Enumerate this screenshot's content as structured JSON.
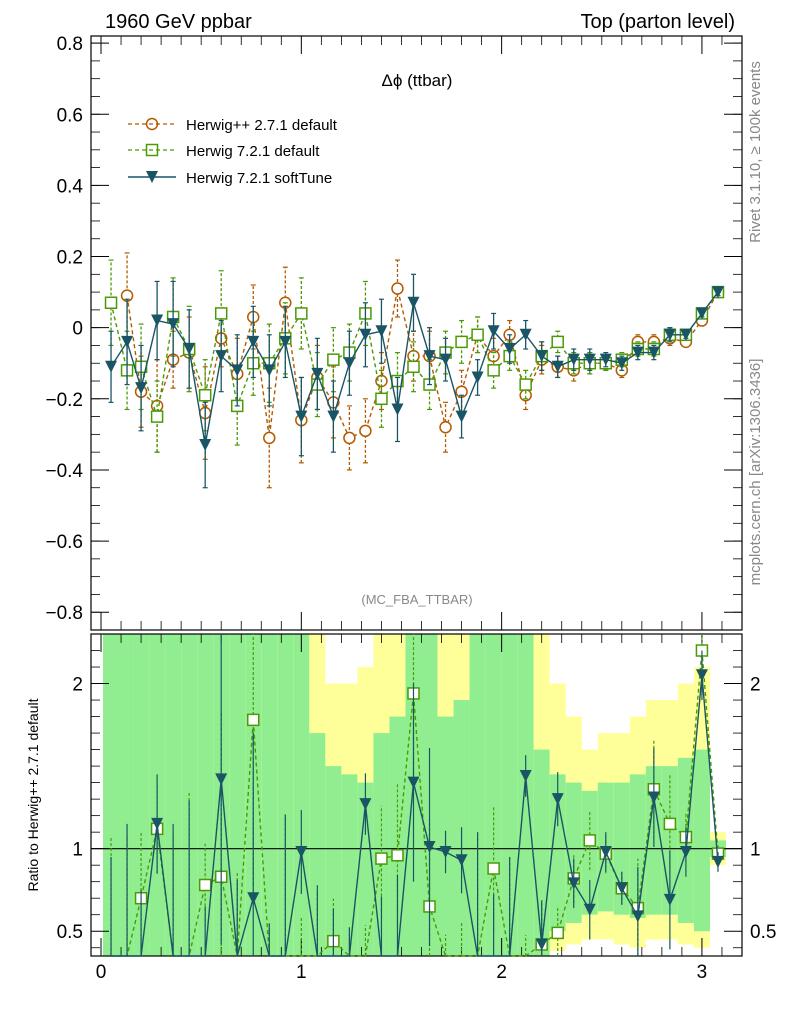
{
  "header": {
    "left": "1960 GeV ppbar",
    "right": "Top (parton level)"
  },
  "side": {
    "rivet": "Rivet 3.1.10, ≥ 100k events",
    "mcplots": "mcplots.cern.ch [arXiv:1306.3436]"
  },
  "main": {
    "title": "Δϕ (ttbar)",
    "analysis": "(MC_FBA_TTBAR)"
  },
  "ratio": {
    "ylabel": "Ratio to Herwig++ 2.7.1 default"
  },
  "legend": {
    "items": [
      {
        "label": "Herwig++ 2.7.1 default",
        "color": "#b35a00",
        "marker": "circle",
        "dash": true
      },
      {
        "label": "Herwig 7.2.1 default",
        "color": "#4a9a06",
        "marker": "square",
        "dash": true
      },
      {
        "label": "Herwig 7.2.1 softTune",
        "color": "#1a5566",
        "marker": "triangle-down",
        "dash": false
      }
    ]
  },
  "chart_data": [
    {
      "type": "line",
      "xlim": [
        -0.05,
        3.2
      ],
      "ylim": [
        -0.85,
        0.82
      ],
      "x_ticks": [
        0,
        1,
        2,
        3
      ],
      "y_ticks": [
        -0.8,
        -0.6,
        -0.4,
        -0.2,
        0,
        0.2,
        0.4,
        0.6,
        0.8
      ],
      "x": [
        0.05,
        0.13,
        0.2,
        0.28,
        0.36,
        0.44,
        0.52,
        0.6,
        0.68,
        0.76,
        0.84,
        0.92,
        1.0,
        1.08,
        1.16,
        1.24,
        1.32,
        1.4,
        1.48,
        1.56,
        1.64,
        1.72,
        1.8,
        1.88,
        1.96,
        2.04,
        2.12,
        2.2,
        2.28,
        2.36,
        2.44,
        2.52,
        2.6,
        2.68,
        2.76,
        2.84,
        2.92,
        3.0,
        3.08
      ],
      "series": [
        {
          "name": "Herwig++ 2.7.1 default",
          "color": "#b35a00",
          "y": [
            null,
            0.09,
            -0.18,
            -0.22,
            -0.09,
            -0.07,
            -0.24,
            -0.03,
            -0.13,
            0.03,
            -0.31,
            0.07,
            -0.26,
            -0.14,
            -0.21,
            -0.31,
            -0.29,
            -0.15,
            0.11,
            -0.08,
            -0.08,
            -0.28,
            -0.18,
            -0.02,
            -0.08,
            -0.02,
            -0.19,
            -0.09,
            -0.11,
            -0.12,
            -0.1,
            -0.1,
            -0.12,
            -0.04,
            -0.04,
            -0.03,
            -0.04,
            0.02,
            0.1
          ],
          "err": [
            null,
            0.12,
            0.1,
            0.13,
            0.08,
            0.1,
            0.13,
            0.08,
            0.1,
            0.09,
            0.14,
            0.1,
            0.12,
            0.09,
            0.1,
            0.09,
            0.09,
            0.08,
            0.08,
            0.07,
            0.07,
            0.07,
            0.06,
            0.05,
            0.05,
            0.04,
            0.04,
            0.04,
            0.03,
            0.03,
            0.03,
            0.02,
            0.02,
            0.02,
            0.02,
            0.02,
            0.01,
            0.01,
            0.01
          ]
        },
        {
          "name": "Herwig 7.2.1 default",
          "color": "#4a9a06",
          "y": [
            0.07,
            -0.12,
            -0.11,
            -0.25,
            0.03,
            -0.06,
            -0.19,
            0.04,
            -0.22,
            -0.1,
            -0.1,
            -0.03,
            0.04,
            -0.16,
            -0.09,
            -0.07,
            0.04,
            -0.2,
            -0.15,
            -0.11,
            -0.16,
            -0.07,
            -0.04,
            -0.02,
            -0.12,
            -0.08,
            -0.16,
            -0.08,
            -0.04,
            -0.1,
            -0.1,
            -0.1,
            -0.09,
            -0.06,
            -0.06,
            -0.02,
            -0.02,
            0.04,
            0.1
          ],
          "err": [
            0.12,
            0.11,
            0.12,
            0.1,
            0.11,
            0.12,
            0.1,
            0.12,
            0.11,
            0.09,
            0.11,
            0.1,
            0.1,
            0.09,
            0.09,
            0.08,
            0.09,
            0.08,
            0.08,
            0.07,
            0.07,
            0.06,
            0.06,
            0.05,
            0.05,
            0.04,
            0.04,
            0.04,
            0.03,
            0.03,
            0.03,
            0.02,
            0.02,
            0.02,
            0.02,
            0.02,
            0.01,
            0.01,
            0.01
          ]
        },
        {
          "name": "Herwig 7.2.1 softTune",
          "color": "#1a5566",
          "y": [
            -0.11,
            -0.04,
            -0.17,
            0.02,
            0.01,
            -0.06,
            -0.33,
            -0.08,
            -0.12,
            -0.04,
            -0.12,
            -0.04,
            -0.25,
            -0.13,
            -0.25,
            -0.1,
            -0.02,
            -0.01,
            -0.23,
            0.07,
            -0.08,
            -0.09,
            -0.25,
            -0.14,
            -0.01,
            -0.06,
            -0.02,
            -0.08,
            -0.11,
            -0.09,
            -0.09,
            -0.09,
            -0.1,
            -0.07,
            -0.07,
            -0.02,
            -0.02,
            0.04,
            0.1
          ],
          "err": [
            0.1,
            0.12,
            0.12,
            0.11,
            0.12,
            0.11,
            0.12,
            0.1,
            0.1,
            0.1,
            0.1,
            0.1,
            0.11,
            0.1,
            0.1,
            0.09,
            0.09,
            0.09,
            0.09,
            0.08,
            0.08,
            0.06,
            0.06,
            0.05,
            0.05,
            0.04,
            0.04,
            0.04,
            0.03,
            0.03,
            0.03,
            0.02,
            0.02,
            0.02,
            0.02,
            0.02,
            0.01,
            0.01,
            0.01
          ]
        }
      ]
    },
    {
      "type": "line",
      "ylabel": "Ratio to Herwig++ 2.7.1 default",
      "xlim": [
        -0.05,
        3.2
      ],
      "ylim": [
        0.35,
        2.3
      ],
      "x_ticks": [
        0,
        1,
        2,
        3
      ],
      "y_ticks": [
        0.5,
        1,
        2
      ],
      "bands": {
        "yellow_color": "#ffff99",
        "green_color": "#90ee90",
        "yellow_lo": [
          0.35,
          0.35,
          0.35,
          0.35,
          0.35,
          0.35,
          0.35,
          0.35,
          0.35,
          0.35,
          0.35,
          0.35,
          0.35,
          0.35,
          0.35,
          0.35,
          0.35,
          0.35,
          0.35,
          0.35,
          0.35,
          0.35,
          0.35,
          0.35,
          0.35,
          0.35,
          0.35,
          0.35,
          0.38,
          0.42,
          0.45,
          0.45,
          0.42,
          0.4,
          0.45,
          0.45,
          0.42,
          0.4,
          0.9
        ],
        "yellow_hi": [
          2.3,
          2.3,
          2.3,
          2.3,
          2.3,
          2.3,
          2.3,
          2.3,
          2.3,
          2.3,
          2.3,
          2.3,
          2.3,
          2.3,
          2.0,
          2.0,
          2.1,
          2.3,
          2.3,
          2.3,
          2.3,
          2.3,
          2.3,
          2.3,
          2.3,
          2.3,
          2.3,
          2.3,
          2.0,
          1.8,
          1.6,
          1.7,
          1.7,
          1.8,
          1.9,
          1.9,
          2.0,
          2.1,
          1.1
        ],
        "green_lo": [
          0.35,
          0.35,
          0.35,
          0.35,
          0.35,
          0.35,
          0.35,
          0.35,
          0.35,
          0.35,
          0.35,
          0.35,
          0.35,
          0.35,
          0.35,
          0.35,
          0.35,
          0.35,
          0.35,
          0.35,
          0.35,
          0.35,
          0.35,
          0.35,
          0.35,
          0.35,
          0.35,
          0.35,
          0.5,
          0.55,
          0.6,
          0.62,
          0.6,
          0.58,
          0.6,
          0.6,
          0.55,
          0.5,
          0.95
        ],
        "green_hi": [
          2.3,
          2.3,
          2.3,
          2.3,
          2.3,
          2.3,
          2.3,
          2.3,
          2.3,
          2.3,
          2.3,
          2.3,
          2.3,
          1.7,
          1.5,
          1.45,
          1.4,
          1.7,
          1.8,
          2.3,
          2.3,
          1.8,
          1.9,
          2.3,
          2.3,
          2.3,
          2.3,
          1.6,
          1.45,
          1.4,
          1.35,
          1.4,
          1.4,
          1.45,
          1.5,
          1.5,
          1.55,
          1.6,
          1.05
        ]
      },
      "series": [
        {
          "name": "Herwig 7.2.1 default",
          "y": [
            null,
            null,
            0.7,
            1.12,
            null,
            null,
            0.78,
            0.83,
            null,
            1.78,
            null,
            null,
            null,
            null,
            0.44,
            null,
            null,
            0.94,
            0.96,
            1.94,
            0.65,
            null,
            null,
            null,
            0.88,
            null,
            null,
            0.42,
            0.49,
            0.82,
            1.05,
            0.97,
            0.76,
            0.64,
            1.36,
            1.15,
            1.07,
            2.2,
            0.97
          ]
        },
        {
          "name": "Herwig 7.2.1 softTune",
          "y": [
            null,
            null,
            null,
            1.15,
            null,
            null,
            null,
            1.42,
            null,
            0.7,
            null,
            null,
            0.98,
            null,
            null,
            null,
            1.27,
            null,
            null,
            1.4,
            1.01,
            0.98,
            0.93,
            null,
            null,
            null,
            1.44,
            0.42,
            1.3,
            0.79,
            0.63,
            0.98,
            0.76,
            0.59,
            1.31,
            0.69,
            0.98,
            2.05,
            0.92
          ]
        }
      ]
    }
  ]
}
